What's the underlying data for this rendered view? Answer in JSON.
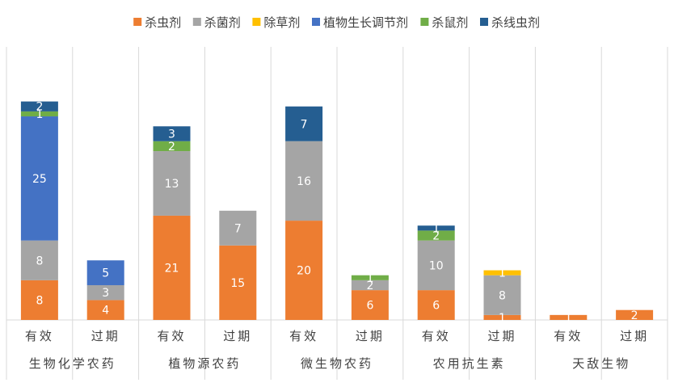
{
  "chart_data": {
    "type": "bar",
    "stacked": true,
    "legend_position": "top",
    "grid": false,
    "ylim": [
      0,
      55
    ],
    "groups": [
      {
        "label": "生物化学农药",
        "categories": [
          "有效",
          "过期"
        ]
      },
      {
        "label": "植物源农药",
        "categories": [
          "有效",
          "过期"
        ]
      },
      {
        "label": "微生物农药",
        "categories": [
          "有效",
          "过期"
        ]
      },
      {
        "label": "农用抗生素",
        "categories": [
          "有效",
          "过期"
        ]
      },
      {
        "label": "天敌生物",
        "categories": [
          "有效",
          "过期"
        ]
      }
    ],
    "categories": [
      "有效",
      "过期",
      "有效",
      "过期",
      "有效",
      "过期",
      "有效",
      "过期",
      "有效",
      "过期"
    ],
    "series": [
      {
        "name": "杀虫剂",
        "color": "#ED7D31",
        "values": [
          8,
          4,
          21,
          15,
          20,
          6,
          6,
          1,
          1,
          2
        ]
      },
      {
        "name": "杀菌剂",
        "color": "#A5A5A5",
        "values": [
          8,
          3,
          13,
          7,
          16,
          2,
          10,
          8,
          0,
          0
        ]
      },
      {
        "name": "除草剂",
        "color": "#FFC000",
        "values": [
          0,
          0,
          0,
          0,
          0,
          0,
          0,
          1,
          0,
          0
        ]
      },
      {
        "name": "植物生长调节剂",
        "color": "#4472C4",
        "values": [
          25,
          5,
          0,
          0,
          0,
          0,
          0,
          0,
          0,
          0
        ]
      },
      {
        "name": "杀鼠剂",
        "color": "#70AD47",
        "values": [
          1,
          0,
          2,
          0,
          0,
          1,
          2,
          0,
          0,
          0
        ]
      },
      {
        "name": "杀线虫剂",
        "color": "#255E91",
        "values": [
          2,
          0,
          3,
          0,
          7,
          0,
          1,
          0,
          0,
          0
        ]
      }
    ]
  }
}
